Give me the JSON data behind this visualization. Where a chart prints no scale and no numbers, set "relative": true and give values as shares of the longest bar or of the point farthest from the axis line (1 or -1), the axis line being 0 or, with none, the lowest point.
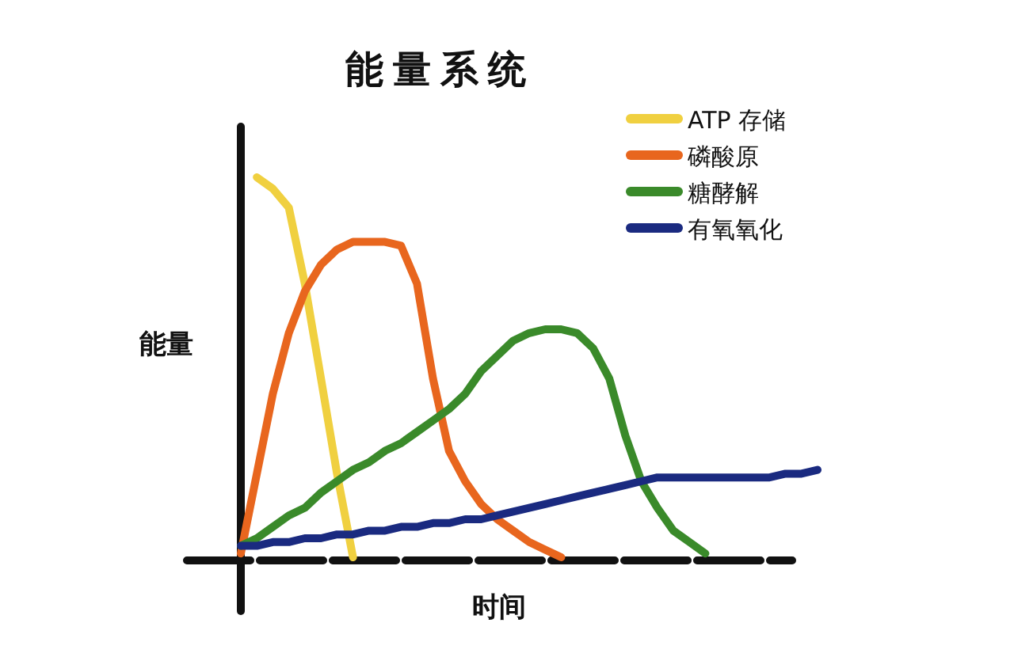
{
  "chart_data": {
    "type": "line",
    "title": "能量系统",
    "xlabel": "时间",
    "ylabel": "能量",
    "relative": true,
    "legend": "top right",
    "categories": [
      null,
      null,
      null,
      null,
      null,
      null,
      null,
      null,
      null,
      null,
      null,
      null,
      null,
      null,
      null,
      null,
      null,
      null,
      null,
      null,
      null,
      null,
      null,
      null,
      null,
      null,
      null,
      null,
      null,
      null,
      null,
      null,
      null,
      null,
      null,
      null,
      null
    ],
    "series": [
      {
        "name": "ATP 存储",
        "color": "#f0d040",
        "values": [
          null,
          1,
          0.97,
          0.92,
          0.72,
          0.47,
          0.22,
          0,
          null,
          null,
          null,
          null,
          null,
          null,
          null,
          null,
          null,
          null,
          null,
          null,
          null,
          null,
          null,
          null,
          null,
          null,
          null,
          null,
          null,
          null,
          null,
          null,
          null,
          null,
          null,
          null,
          null
        ]
      },
      {
        "name": "磷酸原",
        "color": "#e8661e",
        "values": [
          0.01,
          0.22,
          0.43,
          0.59,
          0.7,
          0.77,
          0.81,
          0.83,
          0.83,
          0.83,
          0.82,
          0.72,
          0.47,
          0.28,
          0.2,
          0.14,
          0.1,
          0.07,
          0.04,
          0.02,
          0,
          null,
          null,
          null,
          null,
          null,
          null,
          null,
          null,
          null,
          null,
          null,
          null,
          null,
          null,
          null,
          null
        ]
      },
      {
        "name": "糖酵解",
        "color": "#3a8a2a",
        "values": [
          0.03,
          0.05,
          0.08,
          0.11,
          0.13,
          0.17,
          0.2,
          0.23,
          0.25,
          0.28,
          0.3,
          0.33,
          0.36,
          0.39,
          0.43,
          0.49,
          0.53,
          0.57,
          0.59,
          0.6,
          0.6,
          0.59,
          0.55,
          0.47,
          0.32,
          0.2,
          0.13,
          0.07,
          0.04,
          0.01,
          null,
          null,
          null,
          null,
          null,
          null,
          null
        ]
      },
      {
        "name": "有氧氧化",
        "color": "#1a2a80",
        "values": [
          0.03,
          0.03,
          0.04,
          0.04,
          0.05,
          0.05,
          0.06,
          0.06,
          0.07,
          0.07,
          0.08,
          0.08,
          0.09,
          0.09,
          0.1,
          0.1,
          0.11,
          0.12,
          0.13,
          0.14,
          0.15,
          0.16,
          0.17,
          0.18,
          0.19,
          0.2,
          0.21,
          0.21,
          0.21,
          0.21,
          0.21,
          0.21,
          0.21,
          0.21,
          0.22,
          0.22,
          0.23
        ]
      }
    ]
  }
}
